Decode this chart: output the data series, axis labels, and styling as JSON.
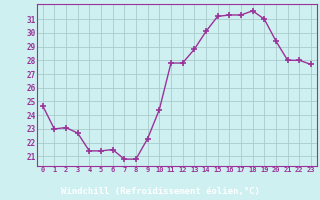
{
  "x": [
    0,
    1,
    2,
    3,
    4,
    5,
    6,
    7,
    8,
    9,
    10,
    11,
    12,
    13,
    14,
    15,
    16,
    17,
    18,
    19,
    20,
    21,
    22,
    23
  ],
  "y": [
    24.7,
    23.0,
    23.1,
    22.7,
    21.4,
    21.4,
    21.5,
    20.8,
    20.8,
    22.3,
    24.4,
    27.8,
    27.8,
    28.8,
    30.1,
    31.2,
    31.3,
    31.3,
    31.6,
    31.0,
    29.4,
    28.0,
    28.0,
    27.7
  ],
  "xlim": [
    -0.5,
    23.5
  ],
  "ylim": [
    20.3,
    32.1
  ],
  "yticks": [
    21,
    22,
    23,
    24,
    25,
    26,
    27,
    28,
    29,
    30,
    31
  ],
  "xtick_labels": [
    "0",
    "1",
    "2",
    "3",
    "4",
    "5",
    "6",
    "7",
    "8",
    "9",
    "10",
    "11",
    "12",
    "13",
    "14",
    "15",
    "16",
    "17",
    "18",
    "19",
    "20",
    "21",
    "22",
    "23"
  ],
  "xlabel": "Windchill (Refroidissement éolien,°C)",
  "line_color": "#993399",
  "marker": "+",
  "marker_size": 4,
  "marker_lw": 1.2,
  "bg_color": "#cff0f0",
  "grid_color": "#aacccc",
  "tick_color": "#993399",
  "spine_color": "#993399",
  "xlabel_bg": "#993399",
  "xlabel_text_color": "#ffffff",
  "line_width": 1.0
}
